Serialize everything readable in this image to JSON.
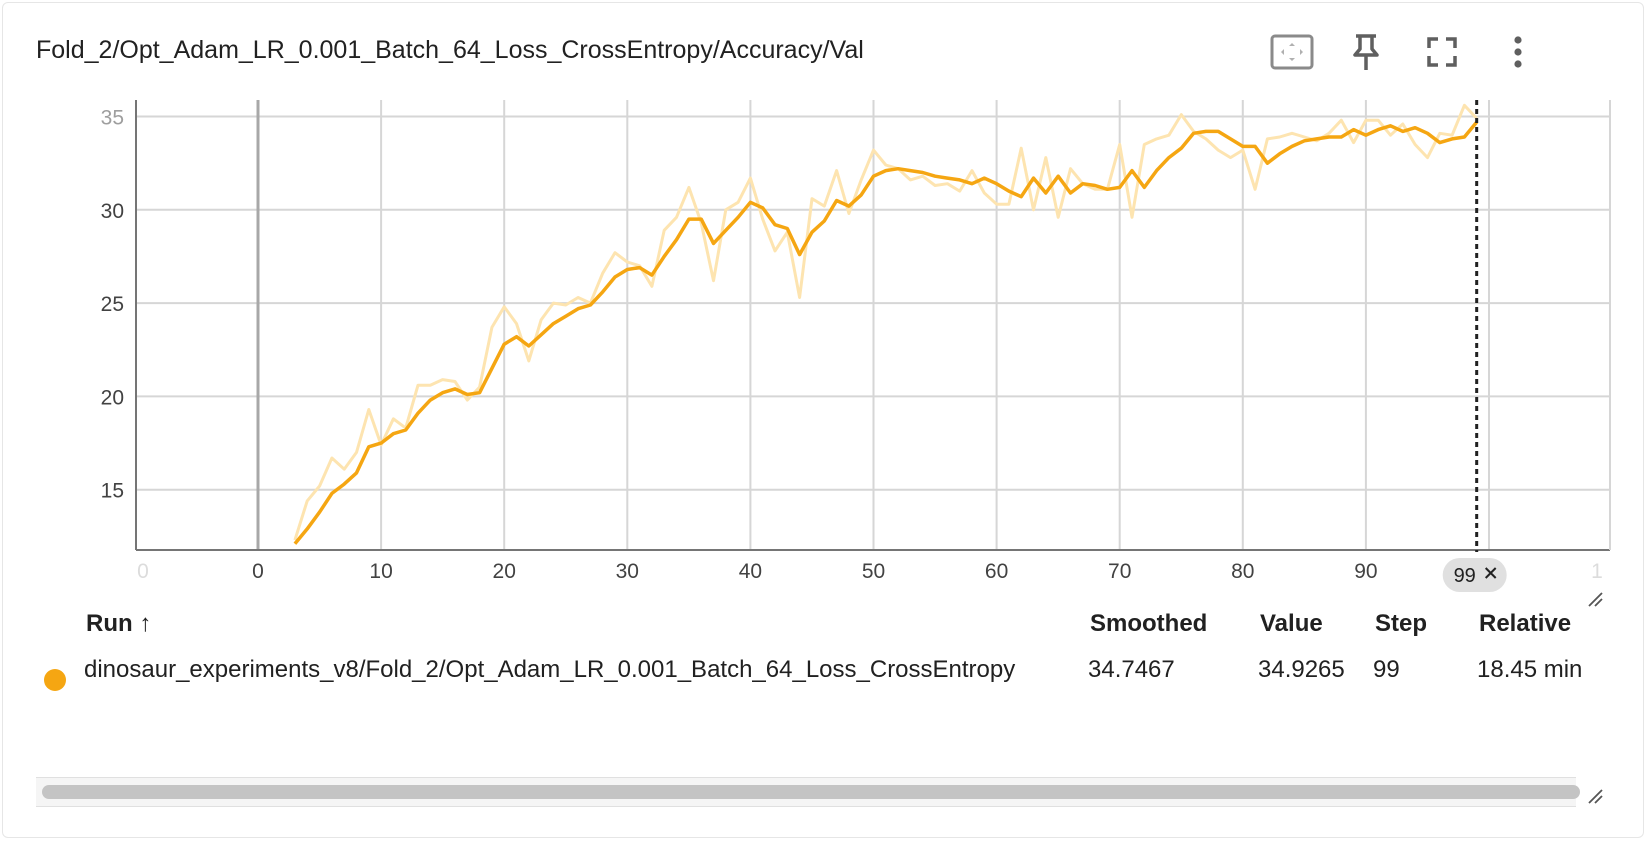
{
  "card": {
    "title": "Fold_2/Opt_Adam_LR_0.001_Batch_64_Loss_CrossEntropy/Accuracy/Val"
  },
  "toolbar": {
    "icons": [
      "fit-domain-icon",
      "pin-icon",
      "fullscreen-icon",
      "more-vert-icon"
    ]
  },
  "colors": {
    "series": "#f5a612",
    "series_raw": "#fde4b0",
    "grid": "#d6d6d6",
    "axis": "#9e9e9e"
  },
  "chart_data": {
    "type": "line",
    "title": "",
    "xlabel": "",
    "ylabel": "",
    "xlim": [
      -10,
      110
    ],
    "ylim": [
      12,
      36
    ],
    "x_ticks": [
      "0",
      "0",
      "10",
      "20",
      "30",
      "40",
      "50",
      "60",
      "70",
      "80",
      "90",
      "1"
    ],
    "y_ticks": [
      "15",
      "20",
      "25",
      "30",
      "35"
    ],
    "grid": true,
    "cursor_step": 99,
    "cursor_label": "99",
    "series": [
      {
        "role": "smoothed",
        "x": [
          3,
          4,
          5,
          6,
          7,
          8,
          9,
          10,
          11,
          12,
          13,
          14,
          15,
          16,
          17,
          18,
          19,
          20,
          21,
          22,
          23,
          24,
          25,
          26,
          27,
          28,
          29,
          30,
          31,
          32,
          33,
          34,
          35,
          36,
          37,
          38,
          39,
          40,
          41,
          42,
          43,
          44,
          45,
          46,
          47,
          48,
          49,
          50,
          51,
          52,
          53,
          54,
          55,
          56,
          57,
          58,
          59,
          60,
          61,
          62,
          63,
          64,
          65,
          66,
          67,
          68,
          69,
          70,
          71,
          72,
          73,
          74,
          75,
          76,
          77,
          78,
          79,
          80,
          81,
          82,
          83,
          84,
          85,
          86,
          87,
          88,
          89,
          90,
          91,
          92,
          93,
          94,
          95,
          96,
          97,
          98,
          99
        ],
        "y": [
          12.1,
          12.9,
          13.8,
          14.8,
          15.3,
          15.9,
          17.3,
          17.5,
          18.0,
          18.2,
          19.1,
          19.8,
          20.2,
          20.4,
          20.1,
          20.2,
          21.5,
          22.8,
          23.2,
          22.7,
          23.3,
          23.9,
          24.3,
          24.7,
          24.9,
          25.6,
          26.4,
          26.8,
          26.9,
          26.5,
          27.5,
          28.4,
          29.5,
          29.5,
          28.2,
          28.9,
          29.6,
          30.4,
          30.1,
          29.2,
          29.0,
          27.6,
          28.8,
          29.4,
          30.5,
          30.2,
          30.8,
          31.8,
          32.1,
          32.2,
          32.1,
          32.0,
          31.8,
          31.7,
          31.6,
          31.4,
          31.7,
          31.4,
          31.0,
          30.7,
          31.7,
          30.9,
          31.8,
          30.9,
          31.4,
          31.3,
          31.1,
          31.2,
          32.1,
          31.2,
          32.1,
          32.8,
          33.3,
          34.1,
          34.2,
          34.2,
          33.8,
          33.4,
          33.4,
          32.5,
          33.0,
          33.4,
          33.7,
          33.8,
          33.9,
          33.9,
          34.3,
          34.0,
          34.3,
          34.5,
          34.2,
          34.4,
          34.1,
          33.6,
          33.8,
          33.9,
          34.7
        ]
      },
      {
        "role": "raw",
        "x": [
          3,
          4,
          5,
          6,
          7,
          8,
          9,
          10,
          11,
          12,
          13,
          14,
          15,
          16,
          17,
          18,
          19,
          20,
          21,
          22,
          23,
          24,
          25,
          26,
          27,
          28,
          29,
          30,
          31,
          32,
          33,
          34,
          35,
          36,
          37,
          38,
          39,
          40,
          41,
          42,
          43,
          44,
          45,
          46,
          47,
          48,
          49,
          50,
          51,
          52,
          53,
          54,
          55,
          56,
          57,
          58,
          59,
          60,
          61,
          62,
          63,
          64,
          65,
          66,
          67,
          68,
          69,
          70,
          71,
          72,
          73,
          74,
          75,
          76,
          77,
          78,
          79,
          80,
          81,
          82,
          83,
          84,
          85,
          86,
          87,
          88,
          89,
          90,
          91,
          92,
          93,
          94,
          95,
          96,
          97,
          98,
          99
        ],
        "y": [
          12.3,
          14.4,
          15.2,
          16.7,
          16.1,
          17.0,
          19.3,
          17.4,
          18.8,
          18.3,
          20.6,
          20.6,
          20.9,
          20.8,
          19.8,
          20.5,
          23.7,
          24.8,
          23.9,
          21.9,
          24.1,
          25.0,
          24.9,
          25.3,
          25.0,
          26.6,
          27.7,
          27.2,
          27.0,
          25.9,
          28.9,
          29.6,
          31.2,
          29.3,
          26.2,
          30.0,
          30.4,
          31.7,
          29.5,
          27.8,
          28.8,
          25.3,
          30.6,
          30.2,
          32.1,
          29.8,
          31.6,
          33.2,
          32.4,
          32.2,
          31.6,
          31.8,
          31.3,
          31.4,
          31.0,
          32.1,
          30.9,
          30.3,
          30.3,
          33.3,
          30.0,
          32.8,
          29.6,
          32.2,
          31.4,
          31.1,
          31.1,
          33.5,
          29.6,
          33.5,
          33.8,
          34.0,
          35.1,
          34.2,
          33.8,
          33.2,
          32.8,
          33.2,
          31.1,
          33.8,
          33.9,
          34.1,
          33.9,
          33.7,
          34.1,
          34.8,
          33.6,
          34.8,
          34.8,
          34.0,
          34.6,
          33.5,
          32.8,
          34.1,
          34.0,
          35.6,
          34.9
        ]
      }
    ]
  },
  "table": {
    "headers": {
      "run": "Run ↑",
      "smoothed": "Smoothed",
      "value": "Value",
      "step": "Step",
      "relative": "Relative"
    },
    "rows": [
      {
        "run": "dinosaur_experiments_v8/Fold_2/Opt_Adam_LR_0.001_Batch_64_Loss_CrossEntropy",
        "smoothed": "34.7467",
        "value": "34.9265",
        "step": "99",
        "relative": "18.45 min"
      }
    ]
  }
}
